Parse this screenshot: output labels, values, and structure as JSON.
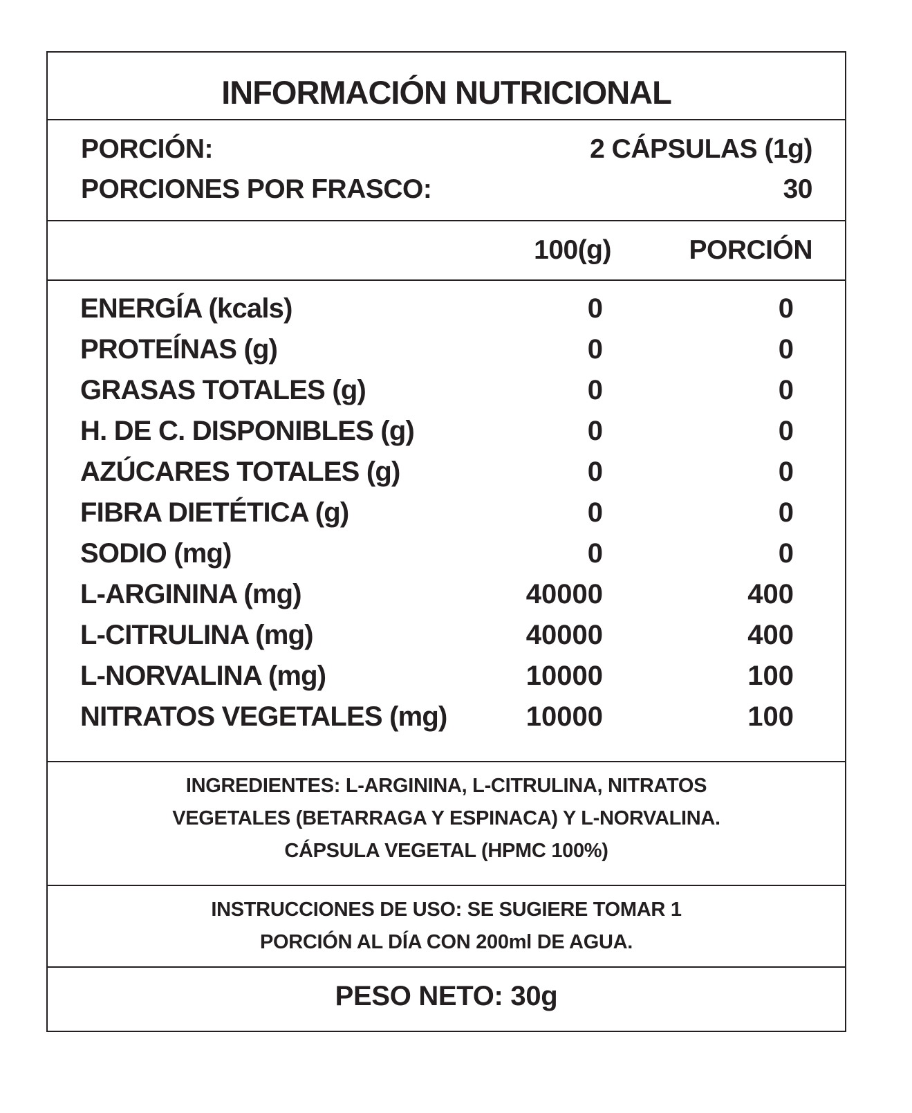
{
  "title": "INFORMACIÓN NUTRICIONAL",
  "serving": {
    "portion_label": "PORCIÓN:",
    "portion_value": "2 CÁPSULAS (1g)",
    "servings_label": "PORCIONES POR FRASCO:",
    "servings_value": "30"
  },
  "columns": {
    "per100": "100(g)",
    "per_portion": "PORCIÓN"
  },
  "rows": [
    {
      "name": "ENERGÍA (kcals)",
      "per100": "0",
      "portion": "0"
    },
    {
      "name": "PROTEÍNAS (g)",
      "per100": "0",
      "portion": "0"
    },
    {
      "name": "GRASAS TOTALES (g)",
      "per100": "0",
      "portion": "0"
    },
    {
      "name": "H. DE C. DISPONIBLES (g)",
      "per100": "0",
      "portion": "0"
    },
    {
      "name": "AZÚCARES TOTALES (g)",
      "per100": "0",
      "portion": "0"
    },
    {
      "name": "FIBRA DIETÉTICA (g)",
      "per100": "0",
      "portion": "0"
    },
    {
      "name": "SODIO (mg)",
      "per100": "0",
      "portion": "0"
    },
    {
      "name": "L-ARGININA (mg)",
      "per100": "40000",
      "portion": "400"
    },
    {
      "name": "L-CITRULINA (mg)",
      "per100": "40000",
      "portion": "400"
    },
    {
      "name": "L-NORVALINA (mg)",
      "per100": "10000",
      "portion": "100"
    },
    {
      "name": "NITRATOS VEGETALES (mg)",
      "per100": "10000",
      "portion": "100"
    }
  ],
  "ingredients": [
    "INGREDIENTES: L-ARGININA, L-CITRULINA, NITRATOS",
    "VEGETALES (BETARRAGA Y ESPINACA) Y L-NORVALINA.",
    "CÁPSULA VEGETAL (HPMC 100%)"
  ],
  "instructions": [
    "INSTRUCCIONES DE USO: SE SUGIERE TOMAR 1",
    "PORCIÓN AL DÍA CON 200ml DE AGUA."
  ],
  "net_weight": "PESO NETO: 30g"
}
